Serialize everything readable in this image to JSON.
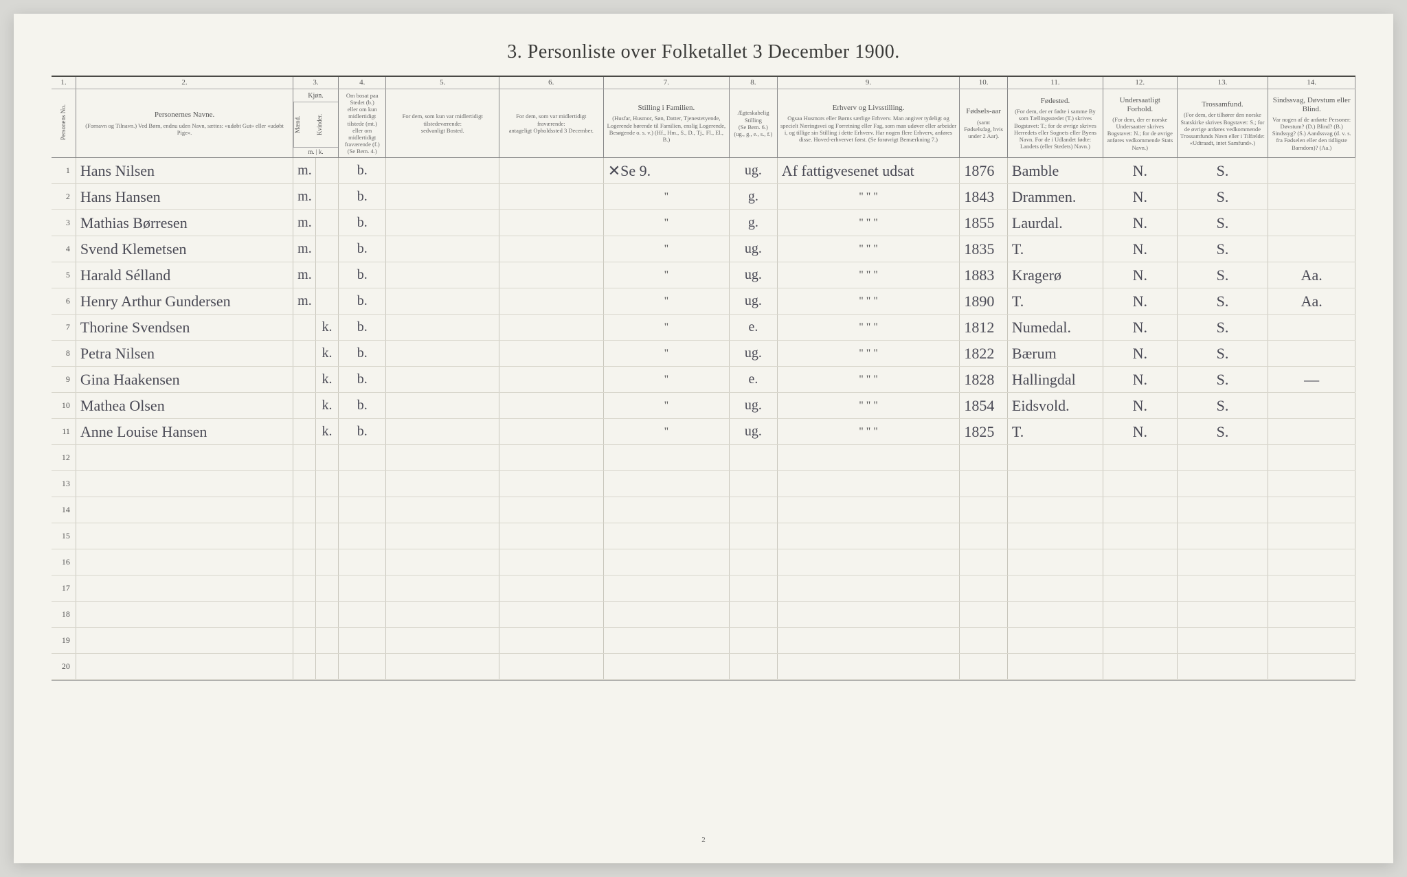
{
  "title": "3. Personliste over Folketallet 3 December 1900.",
  "page_number": "2",
  "colors": {
    "page_bg": "#f5f4ee",
    "body_bg": "#d8d8d4",
    "rule_dark": "#4a4a46",
    "rule_light": "#c8c6bc",
    "ink": "#4a4a55"
  },
  "colnums": [
    "1.",
    "2.",
    "3.",
    "4.",
    "5.",
    "6.",
    "7.",
    "8.",
    "9.",
    "10.",
    "11.",
    "12.",
    "13.",
    "14."
  ],
  "headers": {
    "c1": "Personens No.",
    "c2_title": "Personernes Navne.",
    "c2_sub": "(Fornavn og Tilnavn.)\nVed Børn, endnu uden Navn, sættes: «udøbt Gut» eller «udøbt Pige».",
    "c3_title": "Kjøn.",
    "c3_m": "Mænd.",
    "c3_k": "Kvinder.",
    "c3_mk": "m. | k.",
    "c4_title": "Om bosat paa Stedet (b.)",
    "c4_sub": "eller om kun midlertidigt tilstede (mt.) eller om midlertidigt fraværende (f.)\n(Se Bem. 4.)",
    "c5_title": "For dem, som kun var midlertidigt tilstedeværende:",
    "c5_sub": "sedvanligt Bosted.",
    "c6_title": "For dem, som var midlertidigt fraværende:",
    "c6_sub": "antageligt Opholdssted 3 December.",
    "c7_title": "Stilling i Familien.",
    "c7_sub": "(Husfar, Husmor, Søn, Datter, Tjenestetyende, Logerende hørende til Familien, enslig Logerende, Besøgende o. s. v.)\n(Hf., Hm., S., D., Tj., Fl., El., B.)",
    "c8_title": "Ægteskabelig Stilling",
    "c8_sub": "(Se Bem. 6.)\n(ug., g., e., s., f.)",
    "c9_title": "Erhverv og Livsstilling.",
    "c9_sub": "Ogsaa Husmors eller Børns særlige Erhverv. Man angiver tydeligt og specielt Næringsvei og Forretning eller Fag, som man udøver eller arbeider i, og tillige sin Stilling i dette Erhverv. Har nogen flere Erhverv, anføres disse. Hoved-erhvervet først.\n(Se forøvrigt Bemærkning 7.)",
    "c10_title": "Fødsels-aar",
    "c10_sub": "(samt Fødselsdag, hvis under 2 Aar).",
    "c11_title": "Fødested.",
    "c11_sub": "(For dem, der er fødte i samme By som Tællingsstedet (T.) skrives Bogstavet: T.; for de øvrige skrives Herredets eller Sognets eller Byens Navn. For de i Udlandet fødte: Landets (eller Stedets) Navn.)",
    "c12_title": "Undersaatligt Forhold.",
    "c12_sub": "(For dem, der er norske Undersaatter skrives Bogstavet: N.; for de øvrige anføres vedkommende Stats Navn.)",
    "c13_title": "Trossamfund.",
    "c13_sub": "(For dem, der tilhører den norske Statskirke skrives Bogstavet: S.; for de øvrige anføres vedkommende Trossamfunds Navn eller i Tilfælde: «Udtraadt, intet Samfund».)",
    "c14_title": "Sindssvag, Døvstum eller Blind.",
    "c14_sub": "Var nogen af de anførte Personer:\nDøvstum? (D.)\nBlind? (B.)\nSindssyg? (S.)\nAandssvag (d. v. s. fra Fødselen eller den tidligste Barndom)? (Aa.)"
  },
  "rows": [
    {
      "n": "1",
      "name": "Hans Nilsen",
      "m": "m.",
      "k": "",
      "b": "b.",
      "c5": "",
      "c6": "",
      "c7": "✕Se 9.",
      "c8": "ug.",
      "c9": "Af fattigvesenet udsat",
      "c10": "1876",
      "c11": "Bamble",
      "c12": "N.",
      "c13": "S.",
      "c14": ""
    },
    {
      "n": "2",
      "name": "Hans Hansen",
      "m": "m.",
      "k": "",
      "b": "b.",
      "c5": "",
      "c6": "",
      "c7": "\"",
      "c8": "g.",
      "c9": "\"   \"   \"",
      "c10": "1843",
      "c11": "Drammen.",
      "c12": "N.",
      "c13": "S.",
      "c14": ""
    },
    {
      "n": "3",
      "name": "Mathias Børresen",
      "m": "m.",
      "k": "",
      "b": "b.",
      "c5": "",
      "c6": "",
      "c7": "\"",
      "c8": "g.",
      "c9": "\"   \"   \"",
      "c10": "1855",
      "c11": "Laurdal.",
      "c12": "N.",
      "c13": "S.",
      "c14": ""
    },
    {
      "n": "4",
      "name": "Svend Klemetsen",
      "m": "m.",
      "k": "",
      "b": "b.",
      "c5": "",
      "c6": "",
      "c7": "\"",
      "c8": "ug.",
      "c9": "\"   \"   \"",
      "c10": "1835",
      "c11": "T.",
      "c12": "N.",
      "c13": "S.",
      "c14": ""
    },
    {
      "n": "5",
      "name": "Harald Sélland",
      "m": "m.",
      "k": "",
      "b": "b.",
      "c5": "",
      "c6": "",
      "c7": "\"",
      "c8": "ug.",
      "c9": "\"   \"   \"",
      "c10": "1883",
      "c11": "Kragerø",
      "c12": "N.",
      "c13": "S.",
      "c14": "Aa."
    },
    {
      "n": "6",
      "name": "Henry Arthur Gundersen",
      "m": "m.",
      "k": "",
      "b": "b.",
      "c5": "",
      "c6": "",
      "c7": "\"",
      "c8": "ug.",
      "c9": "\"   \"   \"",
      "c10": "1890",
      "c11": "T.",
      "c12": "N.",
      "c13": "S.",
      "c14": "Aa."
    },
    {
      "n": "7",
      "name": "Thorine Svendsen",
      "m": "",
      "k": "k.",
      "b": "b.",
      "c5": "",
      "c6": "",
      "c7": "\"",
      "c8": "e.",
      "c9": "\"   \"   \"",
      "c10": "1812",
      "c11": "Numedal.",
      "c12": "N.",
      "c13": "S.",
      "c14": ""
    },
    {
      "n": "8",
      "name": "Petra Nilsen",
      "m": "",
      "k": "k.",
      "b": "b.",
      "c5": "",
      "c6": "",
      "c7": "\"",
      "c8": "ug.",
      "c9": "\"   \"   \"",
      "c10": "1822",
      "c11": "Bærum",
      "c12": "N.",
      "c13": "S.",
      "c14": ""
    },
    {
      "n": "9",
      "name": "Gina Haakensen",
      "m": "",
      "k": "k.",
      "b": "b.",
      "c5": "",
      "c6": "",
      "c7": "\"",
      "c8": "e.",
      "c9": "\"   \"   \"",
      "c10": "1828",
      "c11": "Hallingdal",
      "c12": "N.",
      "c13": "S.",
      "c14": "—"
    },
    {
      "n": "10",
      "name": "Mathea Olsen",
      "m": "",
      "k": "k.",
      "b": "b.",
      "c5": "",
      "c6": "",
      "c7": "\"",
      "c8": "ug.",
      "c9": "\"   \"   \"",
      "c10": "1854",
      "c11": "Eidsvold.",
      "c12": "N.",
      "c13": "S.",
      "c14": ""
    },
    {
      "n": "11",
      "name": "Anne Louise Hansen",
      "m": "",
      "k": "k.",
      "b": "b.",
      "c5": "",
      "c6": "",
      "c7": "\"",
      "c8": "ug.",
      "c9": "\"   \"   \"",
      "c10": "1825",
      "c11": "T.",
      "c12": "N.",
      "c13": "S.",
      "c14": ""
    },
    {
      "n": "12",
      "name": "",
      "m": "",
      "k": "",
      "b": "",
      "c5": "",
      "c6": "",
      "c7": "",
      "c8": "",
      "c9": "",
      "c10": "",
      "c11": "",
      "c12": "",
      "c13": "",
      "c14": ""
    },
    {
      "n": "13",
      "name": "",
      "m": "",
      "k": "",
      "b": "",
      "c5": "",
      "c6": "",
      "c7": "",
      "c8": "",
      "c9": "",
      "c10": "",
      "c11": "",
      "c12": "",
      "c13": "",
      "c14": ""
    },
    {
      "n": "14",
      "name": "",
      "m": "",
      "k": "",
      "b": "",
      "c5": "",
      "c6": "",
      "c7": "",
      "c8": "",
      "c9": "",
      "c10": "",
      "c11": "",
      "c12": "",
      "c13": "",
      "c14": ""
    },
    {
      "n": "15",
      "name": "",
      "m": "",
      "k": "",
      "b": "",
      "c5": "",
      "c6": "",
      "c7": "",
      "c8": "",
      "c9": "",
      "c10": "",
      "c11": "",
      "c12": "",
      "c13": "",
      "c14": ""
    },
    {
      "n": "16",
      "name": "",
      "m": "",
      "k": "",
      "b": "",
      "c5": "",
      "c6": "",
      "c7": "",
      "c8": "",
      "c9": "",
      "c10": "",
      "c11": "",
      "c12": "",
      "c13": "",
      "c14": ""
    },
    {
      "n": "17",
      "name": "",
      "m": "",
      "k": "",
      "b": "",
      "c5": "",
      "c6": "",
      "c7": "",
      "c8": "",
      "c9": "",
      "c10": "",
      "c11": "",
      "c12": "",
      "c13": "",
      "c14": ""
    },
    {
      "n": "18",
      "name": "",
      "m": "",
      "k": "",
      "b": "",
      "c5": "",
      "c6": "",
      "c7": "",
      "c8": "",
      "c9": "",
      "c10": "",
      "c11": "",
      "c12": "",
      "c13": "",
      "c14": ""
    },
    {
      "n": "19",
      "name": "",
      "m": "",
      "k": "",
      "b": "",
      "c5": "",
      "c6": "",
      "c7": "",
      "c8": "",
      "c9": "",
      "c10": "",
      "c11": "",
      "c12": "",
      "c13": "",
      "c14": ""
    },
    {
      "n": "20",
      "name": "",
      "m": "",
      "k": "",
      "b": "",
      "c5": "",
      "c6": "",
      "c7": "",
      "c8": "",
      "c9": "",
      "c10": "",
      "c11": "",
      "c12": "",
      "c13": "",
      "c14": ""
    }
  ]
}
